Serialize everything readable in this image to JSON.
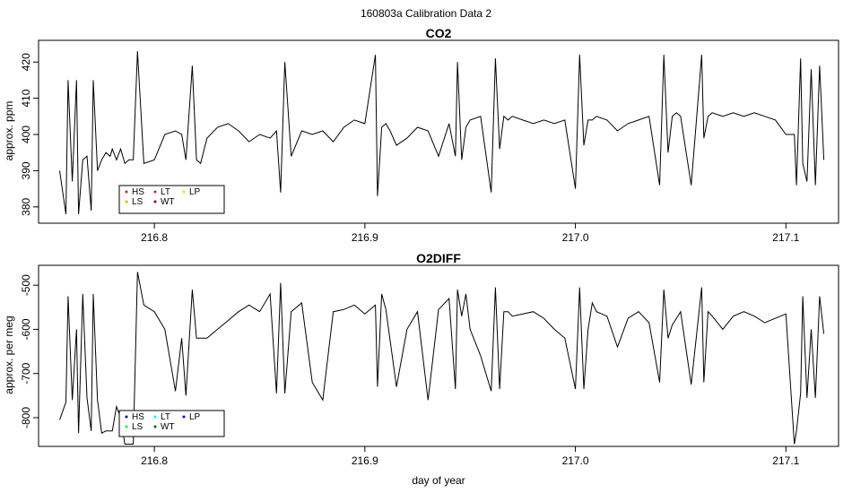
{
  "page_title": "160803a   Calibration Data 2",
  "chart_data": [
    {
      "type": "line",
      "title": "CO2",
      "xlabel": "",
      "ylabel": "approx. ppm",
      "xlim": [
        216.745,
        217.125
      ],
      "ylim": [
        375.5,
        426
      ],
      "x_ticks": [
        216.8,
        216.9,
        217.0,
        217.1
      ],
      "x_tick_labels": [
        "216.8",
        "216.9",
        "217.0",
        "217.1"
      ],
      "y_ticks": [
        380,
        390,
        400,
        410,
        420
      ],
      "y_tick_labels": [
        "380",
        "390",
        "400",
        "410",
        "420"
      ],
      "grid": false,
      "legend": {
        "position": "bottom-left",
        "entries": [
          {
            "label": "HS",
            "color": "#e41a1c"
          },
          {
            "label": "LT",
            "color": "#e41a1c"
          },
          {
            "label": "LP",
            "color": "#ffd700"
          },
          {
            "label": "LS",
            "color": "#ffa500"
          },
          {
            "label": "WT",
            "color": "#8b0000"
          }
        ]
      },
      "series": [
        {
          "color": "#000000",
          "x": [
            216.755,
            216.758,
            216.759,
            216.761,
            216.763,
            216.764,
            216.766,
            216.768,
            216.77,
            216.771,
            216.773,
            216.775,
            216.777,
            216.779,
            216.78,
            216.782,
            216.784,
            216.786,
            216.788,
            216.79,
            216.792,
            216.795,
            216.8,
            216.805,
            216.81,
            216.813,
            216.815,
            216.818,
            216.82,
            216.822,
            216.825,
            216.83,
            216.835,
            216.84,
            216.845,
            216.85,
            216.855,
            216.858,
            216.86,
            216.862,
            216.865,
            216.87,
            216.875,
            216.88,
            216.885,
            216.89,
            216.895,
            216.9,
            216.905,
            216.906,
            216.908,
            216.91,
            216.912,
            216.915,
            216.92,
            216.925,
            216.93,
            216.935,
            216.94,
            216.943,
            216.944,
            216.946,
            216.948,
            216.95,
            216.955,
            216.96,
            216.962,
            216.964,
            216.966,
            216.968,
            216.97,
            216.975,
            216.98,
            216.985,
            216.99,
            216.995,
            217.0,
            217.002,
            217.004,
            217.006,
            217.008,
            217.01,
            217.015,
            217.02,
            217.025,
            217.03,
            217.035,
            217.04,
            217.042,
            217.044,
            217.046,
            217.048,
            217.05,
            217.055,
            217.06,
            217.061,
            217.063,
            217.065,
            217.07,
            217.075,
            217.08,
            217.085,
            217.09,
            217.095,
            217.1,
            217.104,
            217.105,
            217.107,
            217.108,
            217.11,
            217.112,
            217.114,
            217.116,
            217.118
          ],
          "y": [
            390,
            378,
            415,
            387,
            415,
            378,
            393,
            394,
            379,
            415,
            390,
            393,
            395,
            394,
            396,
            393,
            396,
            392,
            393,
            393,
            423,
            392,
            393,
            400,
            401,
            400,
            393,
            419,
            393,
            392,
            399,
            402,
            403,
            401,
            398,
            400,
            399,
            401,
            384,
            420,
            394,
            401,
            400,
            401,
            398,
            402,
            404,
            403,
            422,
            383,
            402,
            403,
            401,
            397,
            399,
            402,
            401,
            394,
            403,
            394,
            420,
            393,
            402,
            404,
            405,
            384,
            421,
            396,
            405,
            404,
            405,
            404,
            403,
            404,
            403,
            404,
            385,
            422,
            397,
            404,
            404,
            405,
            404,
            401,
            403,
            404,
            405,
            386,
            422,
            395,
            405,
            406,
            405,
            386,
            422,
            399,
            405,
            406,
            405,
            406,
            405,
            406,
            405,
            404,
            400,
            400,
            386,
            421,
            392,
            387,
            418,
            386,
            419,
            393
          ]
        }
      ]
    },
    {
      "type": "line",
      "title": "O2DIFF",
      "xlabel": "day of year",
      "ylabel": "approx. per meg",
      "xlim": [
        216.745,
        217.125
      ],
      "ylim": [
        -865,
        -455
      ],
      "x_ticks": [
        216.8,
        216.9,
        217.0,
        217.1
      ],
      "x_tick_labels": [
        "216.8",
        "216.9",
        "217.0",
        "217.1"
      ],
      "y_ticks": [
        -800,
        -700,
        -600,
        -500
      ],
      "y_tick_labels": [
        "-800",
        "-700",
        "-600",
        "-500"
      ],
      "grid": false,
      "legend": {
        "position": "bottom-left",
        "entries": [
          {
            "label": "HS",
            "color": "#00008b"
          },
          {
            "label": "LT",
            "color": "#00ffff"
          },
          {
            "label": "LP",
            "color": "#0000ff"
          },
          {
            "label": "LS",
            "color": "#00ff00"
          },
          {
            "label": "WT",
            "color": "#006400"
          }
        ]
      },
      "series": [
        {
          "color": "#000000",
          "x": [
            216.755,
            216.758,
            216.759,
            216.761,
            216.763,
            216.764,
            216.766,
            216.768,
            216.77,
            216.771,
            216.773,
            216.775,
            216.777,
            216.779,
            216.78,
            216.782,
            216.784,
            216.786,
            216.788,
            216.79,
            216.792,
            216.795,
            216.8,
            216.805,
            216.81,
            216.813,
            216.815,
            216.818,
            216.82,
            216.822,
            216.825,
            216.83,
            216.835,
            216.84,
            216.845,
            216.85,
            216.855,
            216.858,
            216.86,
            216.862,
            216.865,
            216.87,
            216.875,
            216.88,
            216.885,
            216.89,
            216.895,
            216.9,
            216.905,
            216.906,
            216.908,
            216.91,
            216.912,
            216.915,
            216.92,
            216.925,
            216.93,
            216.935,
            216.94,
            216.943,
            216.944,
            216.946,
            216.948,
            216.95,
            216.955,
            216.96,
            216.962,
            216.964,
            216.966,
            216.968,
            216.97,
            216.975,
            216.98,
            216.985,
            216.99,
            216.995,
            217.0,
            217.002,
            217.004,
            217.006,
            217.008,
            217.01,
            217.015,
            217.02,
            217.025,
            217.03,
            217.035,
            217.04,
            217.042,
            217.044,
            217.046,
            217.048,
            217.05,
            217.055,
            217.06,
            217.061,
            217.063,
            217.065,
            217.07,
            217.075,
            217.08,
            217.085,
            217.09,
            217.095,
            217.1,
            217.104,
            217.105,
            217.107,
            217.108,
            217.11,
            217.112,
            217.114,
            217.116,
            217.118
          ],
          "y": [
            -805,
            -765,
            -525,
            -760,
            -600,
            -835,
            -520,
            -755,
            -830,
            -520,
            -760,
            -835,
            -830,
            -830,
            -830,
            -775,
            -800,
            -860,
            -860,
            -860,
            -470,
            -545,
            -560,
            -600,
            -740,
            -620,
            -750,
            -510,
            -620,
            -620,
            -620,
            -600,
            -580,
            -560,
            -545,
            -560,
            -520,
            -745,
            -495,
            -745,
            -560,
            -540,
            -720,
            -760,
            -560,
            -555,
            -545,
            -565,
            -545,
            -730,
            -520,
            -555,
            -625,
            -730,
            -600,
            -560,
            -760,
            -555,
            -530,
            -735,
            -510,
            -570,
            -520,
            -600,
            -660,
            -740,
            -505,
            -735,
            -560,
            -560,
            -570,
            -565,
            -560,
            -575,
            -600,
            -620,
            -735,
            -505,
            -735,
            -600,
            -540,
            -560,
            -570,
            -640,
            -575,
            -560,
            -585,
            -720,
            -510,
            -620,
            -590,
            -575,
            -560,
            -725,
            -505,
            -720,
            -560,
            -570,
            -600,
            -570,
            -560,
            -570,
            -585,
            -575,
            -565,
            -860,
            -830,
            -745,
            -525,
            -755,
            -600,
            -755,
            -525,
            -610
          ]
        }
      ]
    }
  ]
}
